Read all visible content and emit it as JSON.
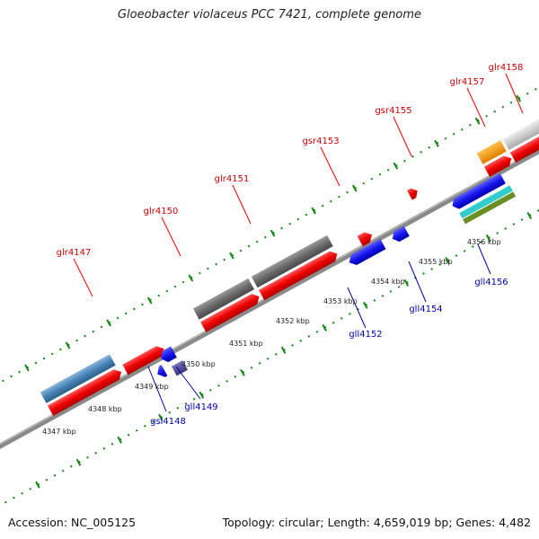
{
  "title": "Gloeobacter violaceus PCC 7421, complete genome",
  "accession": "Accession: NC_005125",
  "summary": "Topology: circular; Length: 4,659,019 bp; Genes: 4,482",
  "colors": {
    "top_label": "#cc0000",
    "bottom_label": "#0000aa",
    "tick": "#118811",
    "backbone": "#8a8a8a"
  },
  "top_labels": [
    {
      "id": "glr4147",
      "text": "glr4147"
    },
    {
      "id": "glr4150",
      "text": "glr4150"
    },
    {
      "id": "glr4151",
      "text": "glr4151"
    },
    {
      "id": "gsr4153",
      "text": "gsr4153"
    },
    {
      "id": "gsr4155",
      "text": "gsr4155"
    },
    {
      "id": "glr4157",
      "text": "glr4157"
    },
    {
      "id": "glr4158",
      "text": "glr4158"
    }
  ],
  "bottom_labels": [
    {
      "id": "gsl4148",
      "text": "gsl4148"
    },
    {
      "id": "gll4149",
      "text": "gll4149"
    },
    {
      "id": "gll4152",
      "text": "gll4152"
    },
    {
      "id": "gll4154",
      "text": "gll4154"
    },
    {
      "id": "gll4156",
      "text": "gll4156"
    }
  ],
  "scale_labels": [
    "4347 kbp",
    "4348 kbp",
    "4349 kbp",
    "4350 kbp",
    "4351 kbp",
    "4352 kbp",
    "4353 kbp",
    "4354 kbp",
    "4355 kbp",
    "4356 kbp"
  ]
}
